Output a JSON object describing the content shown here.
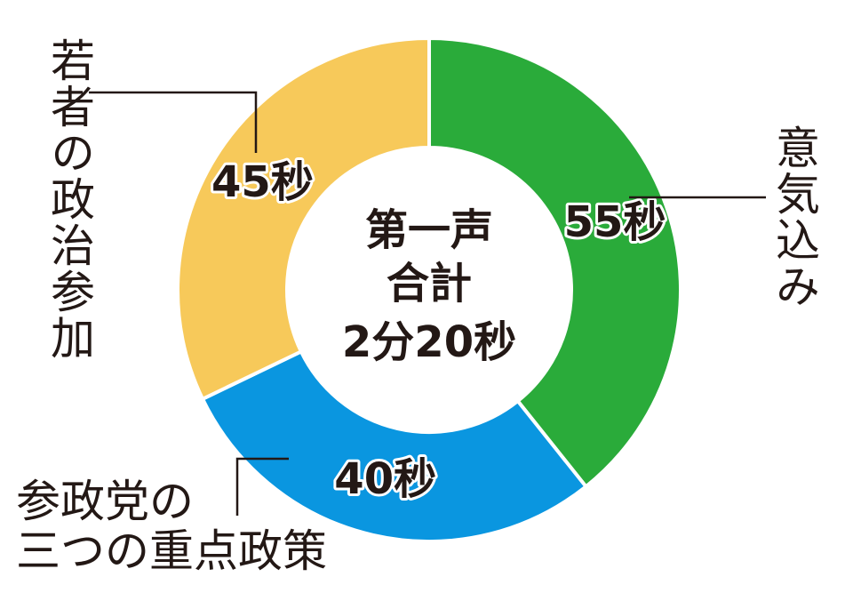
{
  "chart_data": {
    "type": "donut",
    "categories": [
      "意気込み",
      "参政党の\n三つの重点政策",
      "若者の政治参加"
    ],
    "values": [
      55,
      40,
      45
    ],
    "value_labels": [
      "55秒",
      "40秒",
      "45秒"
    ],
    "colors": [
      "#2aab3a",
      "#0a96e0",
      "#f7c95a"
    ],
    "center_text": [
      "第一声",
      "合計",
      "2分20秒"
    ]
  }
}
